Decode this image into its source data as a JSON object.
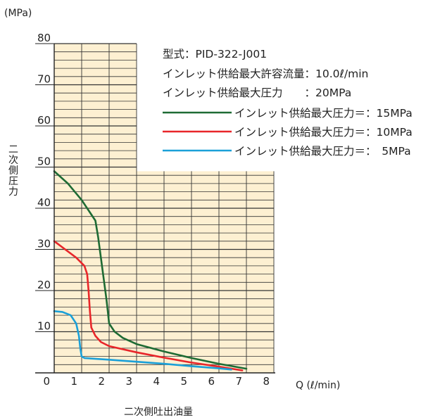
{
  "chart_data": {
    "type": "line",
    "y_unit": "(MPa)",
    "ylabel": "二次側圧力",
    "xlabel": "二次側吐出油量",
    "x_unit": "Q (ℓ/min)",
    "xlim": [
      0,
      8
    ],
    "ylim": [
      0,
      80
    ],
    "x_ticks": [
      0,
      1,
      2,
      3,
      4,
      5,
      6,
      7,
      8
    ],
    "y_ticks": [
      10,
      20,
      30,
      40,
      50,
      60,
      70,
      80
    ],
    "grid": true,
    "info_lines": [
      "型式：PID-322-J001",
      "インレット供給最大許容流量：10.0ℓ/min",
      "インレット供給最大圧力　　：20MPa"
    ],
    "legend_placement": "top-right",
    "series": [
      {
        "name": "インレット供給最大圧力＝：15MPa",
        "color": "#1e6b34",
        "points": [
          [
            0,
            49
          ],
          [
            0.5,
            46
          ],
          [
            1,
            42
          ],
          [
            1.3,
            39
          ],
          [
            1.5,
            37
          ],
          [
            1.6,
            33
          ],
          [
            1.7,
            28
          ],
          [
            1.8,
            23
          ],
          [
            1.9,
            18
          ],
          [
            1.95,
            15
          ],
          [
            2,
            12
          ],
          [
            2.2,
            10
          ],
          [
            2.5,
            8.5
          ],
          [
            3,
            7
          ],
          [
            4,
            5.2
          ],
          [
            5,
            3.6
          ],
          [
            6,
            2.2
          ],
          [
            7,
            1
          ]
        ]
      },
      {
        "name": "インレット供給最大圧力＝：10MPa",
        "color": "#e8262a",
        "points": [
          [
            0,
            32
          ],
          [
            0.4,
            30
          ],
          [
            0.8,
            28
          ],
          [
            1.1,
            26
          ],
          [
            1.2,
            24
          ],
          [
            1.25,
            20
          ],
          [
            1.3,
            15
          ],
          [
            1.35,
            11
          ],
          [
            1.5,
            9
          ],
          [
            1.7,
            7.5
          ],
          [
            2,
            6.5
          ],
          [
            3,
            5
          ],
          [
            4,
            3.7
          ],
          [
            5,
            2.5
          ],
          [
            6,
            1.5
          ],
          [
            6.85,
            0.6
          ]
        ]
      },
      {
        "name": "インレット供給最大圧力＝：　5MPa",
        "color": "#1ba0d8",
        "points": [
          [
            0,
            15
          ],
          [
            0.3,
            14.8
          ],
          [
            0.6,
            14
          ],
          [
            0.8,
            12
          ],
          [
            0.9,
            9
          ],
          [
            0.95,
            6
          ],
          [
            1,
            4
          ],
          [
            1.1,
            3.6
          ],
          [
            2,
            3.2
          ],
          [
            3,
            2.7
          ],
          [
            4,
            2.2
          ],
          [
            5,
            1.6
          ],
          [
            6,
            1.1
          ],
          [
            6.45,
            0.8
          ]
        ]
      }
    ]
  }
}
